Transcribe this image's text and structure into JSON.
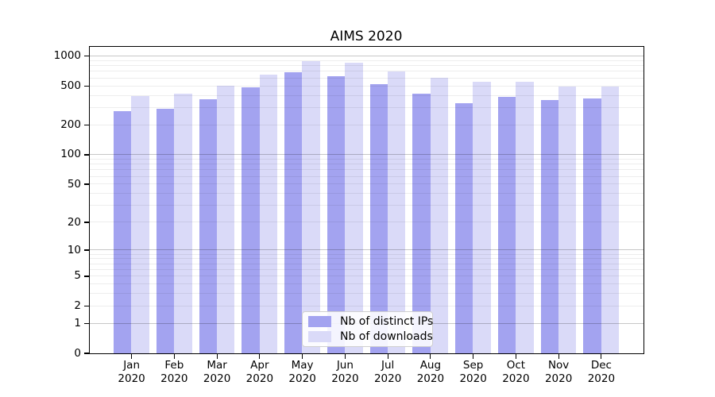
{
  "title": "AIMS 2020",
  "legend": {
    "items": [
      {
        "label": "Nb of distinct IPs",
        "color": "#a3a3f0"
      },
      {
        "label": "Nb of downloads",
        "color": "#dadaf8"
      }
    ]
  },
  "x_axis": {
    "months": [
      "Jan",
      "Feb",
      "Mar",
      "Apr",
      "May",
      "Jun",
      "Jul",
      "Aug",
      "Sep",
      "Oct",
      "Nov",
      "Dec"
    ],
    "year": "2020"
  },
  "y_axis": {
    "tick_labels": [
      "0",
      "1",
      "2",
      "5",
      "10",
      "20",
      "50",
      "100",
      "200",
      "500",
      "1000"
    ]
  },
  "colors": {
    "distinct_ips_bar": "#a3a3f0",
    "downloads_bar": "#dadaf8",
    "grid_major": "rgba(0,0,0,0.22)",
    "grid_minor": "rgba(0,0,0,0.07)",
    "spine": "#000000"
  },
  "chart_data": {
    "type": "bar",
    "title": "AIMS 2020",
    "categories": [
      "Jan 2020",
      "Feb 2020",
      "Mar 2020",
      "Apr 2020",
      "May 2020",
      "Jun 2020",
      "Jul 2020",
      "Aug 2020",
      "Sep 2020",
      "Oct 2020",
      "Nov 2020",
      "Dec 2020"
    ],
    "series": [
      {
        "name": "Nb of distinct IPs",
        "color": "#a3a3f0",
        "values": [
          275,
          290,
          363,
          485,
          680,
          620,
          515,
          415,
          335,
          385,
          360,
          370
        ]
      },
      {
        "name": "Nb of downloads",
        "color": "#dadaf8",
        "values": [
          390,
          413,
          496,
          643,
          880,
          859,
          700,
          601,
          545,
          545,
          490,
          490
        ]
      }
    ],
    "yscale": "log10(y+1)",
    "yticks": [
      0,
      1,
      2,
      5,
      10,
      20,
      50,
      100,
      200,
      500,
      1000
    ],
    "ytick_major_gridlines": [
      1,
      10,
      100,
      1000
    ],
    "ylim": [
      0,
      1242
    ],
    "grid": true,
    "legend_position": "lower center"
  }
}
